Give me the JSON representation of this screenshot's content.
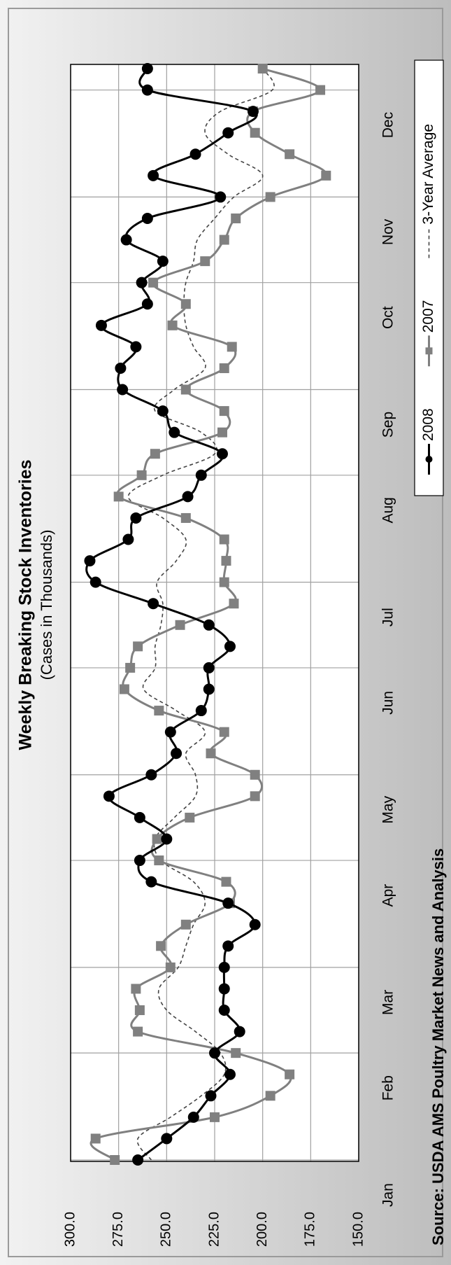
{
  "chart_data": {
    "type": "line",
    "title": "Weekly Breaking Stock Inventories",
    "subtitle": "(Cases in Thousands)",
    "source": "Source: USDA AMS Poultry Market News and Analysis",
    "categories": [
      "Jan",
      null,
      null,
      null,
      null,
      "Feb",
      null,
      null,
      null,
      "Mar",
      null,
      null,
      null,
      null,
      "Apr",
      null,
      null,
      null,
      "May",
      null,
      null,
      null,
      null,
      "Jun",
      null,
      null,
      null,
      "Jul",
      null,
      null,
      null,
      null,
      "Aug",
      null,
      null,
      null,
      "Sep",
      null,
      null,
      null,
      null,
      "Oct",
      null,
      null,
      null,
      "Nov",
      null,
      null,
      null,
      null,
      "Dec",
      null
    ],
    "series": [
      {
        "name": "2008",
        "color": "#000000",
        "marker": "circle",
        "dashed": false,
        "values": [
          265,
          250,
          236,
          227,
          217,
          225,
          212,
          220,
          220,
          220,
          218,
          204,
          218,
          258,
          264,
          250,
          264,
          280,
          258,
          245,
          248,
          232,
          228,
          228,
          217,
          228,
          257,
          287,
          290,
          270,
          266,
          239,
          232,
          221,
          246,
          252,
          273,
          274,
          266,
          284,
          260,
          263,
          252,
          271,
          260,
          222,
          257,
          235,
          218,
          205,
          260,
          260
        ]
      },
      {
        "name": "2007",
        "color": "#808080",
        "marker": "square",
        "dashed": false,
        "values": [
          277,
          287,
          225,
          196,
          186,
          214,
          265,
          264,
          266,
          248,
          253,
          240,
          217,
          219,
          254,
          255,
          238,
          204,
          204,
          227,
          220,
          254,
          272,
          269,
          265,
          243,
          215,
          220,
          219,
          220,
          240,
          275,
          263,
          256,
          221,
          220,
          240,
          220,
          216,
          247,
          240,
          257,
          230,
          220,
          214,
          196,
          167,
          186,
          204,
          205,
          170,
          200
        ]
      },
      {
        "name": "3-Year Average",
        "color": "#444444",
        "marker": null,
        "dashed": true,
        "values": [
          258,
          265,
          248,
          232,
          220,
          222,
          235,
          250,
          254,
          244,
          240,
          236,
          230,
          236,
          253,
          256,
          246,
          235,
          235,
          240,
          230,
          245,
          262,
          256,
          256,
          253,
          252,
          255,
          245,
          240,
          252,
          270,
          252,
          225,
          232,
          256,
          246,
          230,
          236,
          240,
          241,
          240,
          236,
          234,
          225,
          215,
          200,
          218,
          230,
          222,
          195,
          200
        ]
      }
    ],
    "ylim": [
      150,
      300
    ],
    "yticks": [
      {
        "value": 150,
        "label": "150.0"
      },
      {
        "value": 175,
        "label": "175.0"
      },
      {
        "value": 200,
        "label": "200.0"
      },
      {
        "value": 225,
        "label": "225.0"
      },
      {
        "value": 250,
        "label": "250.0"
      },
      {
        "value": 275,
        "label": "275.0"
      },
      {
        "value": 300,
        "label": "300.0"
      }
    ],
    "grid": true,
    "legend": "bottom"
  }
}
